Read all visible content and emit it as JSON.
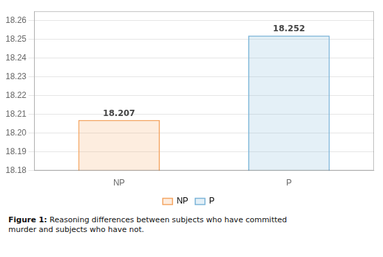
{
  "chart_data": {
    "type": "bar",
    "categories": [
      "NP",
      "P"
    ],
    "values": [
      18.207,
      18.252
    ],
    "colors": [
      "#f4a460",
      "#7ab4d8"
    ],
    "data_labels": true,
    "ylim": [
      18.18,
      18.265
    ],
    "yticks": [
      18.18,
      18.19,
      {
        "value": 18.2,
        "label": "18.20"
      },
      18.21,
      18.22,
      18.23,
      18.24,
      18.25,
      18.26
    ],
    "grid": true,
    "legend": "bottom",
    "caption_label": "Figure 1:",
    "caption": "Reasoning differences between subjects who have committed\nmurder and subjects who have not."
  }
}
